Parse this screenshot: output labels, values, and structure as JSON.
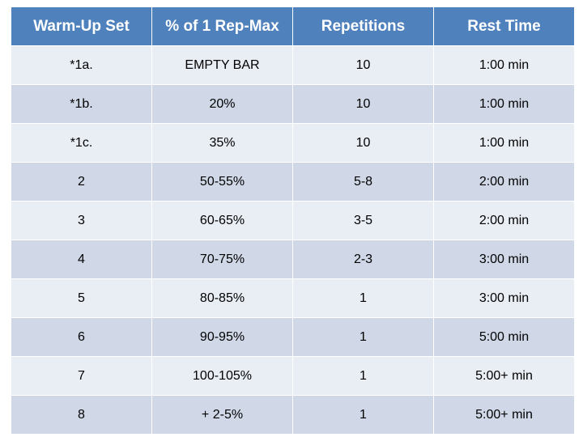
{
  "table": {
    "headers": [
      "Warm-Up Set",
      "% of 1 Rep-Max",
      "Repetitions",
      "Rest Time"
    ],
    "rows": [
      [
        "*1a.",
        "EMPTY BAR",
        "10",
        "1:00 min"
      ],
      [
        "*1b.",
        "20%",
        "10",
        "1:00 min"
      ],
      [
        "*1c.",
        "35%",
        "10",
        "1:00 min"
      ],
      [
        "2",
        "50-55%",
        "5-8",
        "2:00 min"
      ],
      [
        "3",
        "60-65%",
        "3-5",
        "2:00 min"
      ],
      [
        "4",
        "70-75%",
        "2-3",
        "3:00 min"
      ],
      [
        "5",
        "80-85%",
        "1",
        "3:00 min"
      ],
      [
        "6",
        "90-95%",
        "1",
        "5:00 min"
      ],
      [
        "7",
        "100-105%",
        "1",
        "5:00+ min"
      ],
      [
        "8",
        "+ 2-5%",
        "1",
        "5:00+ min"
      ]
    ]
  },
  "colors": {
    "header_bg": "#4f81bd",
    "row_light": "#e9edf4",
    "row_dark": "#d0d8e8"
  }
}
